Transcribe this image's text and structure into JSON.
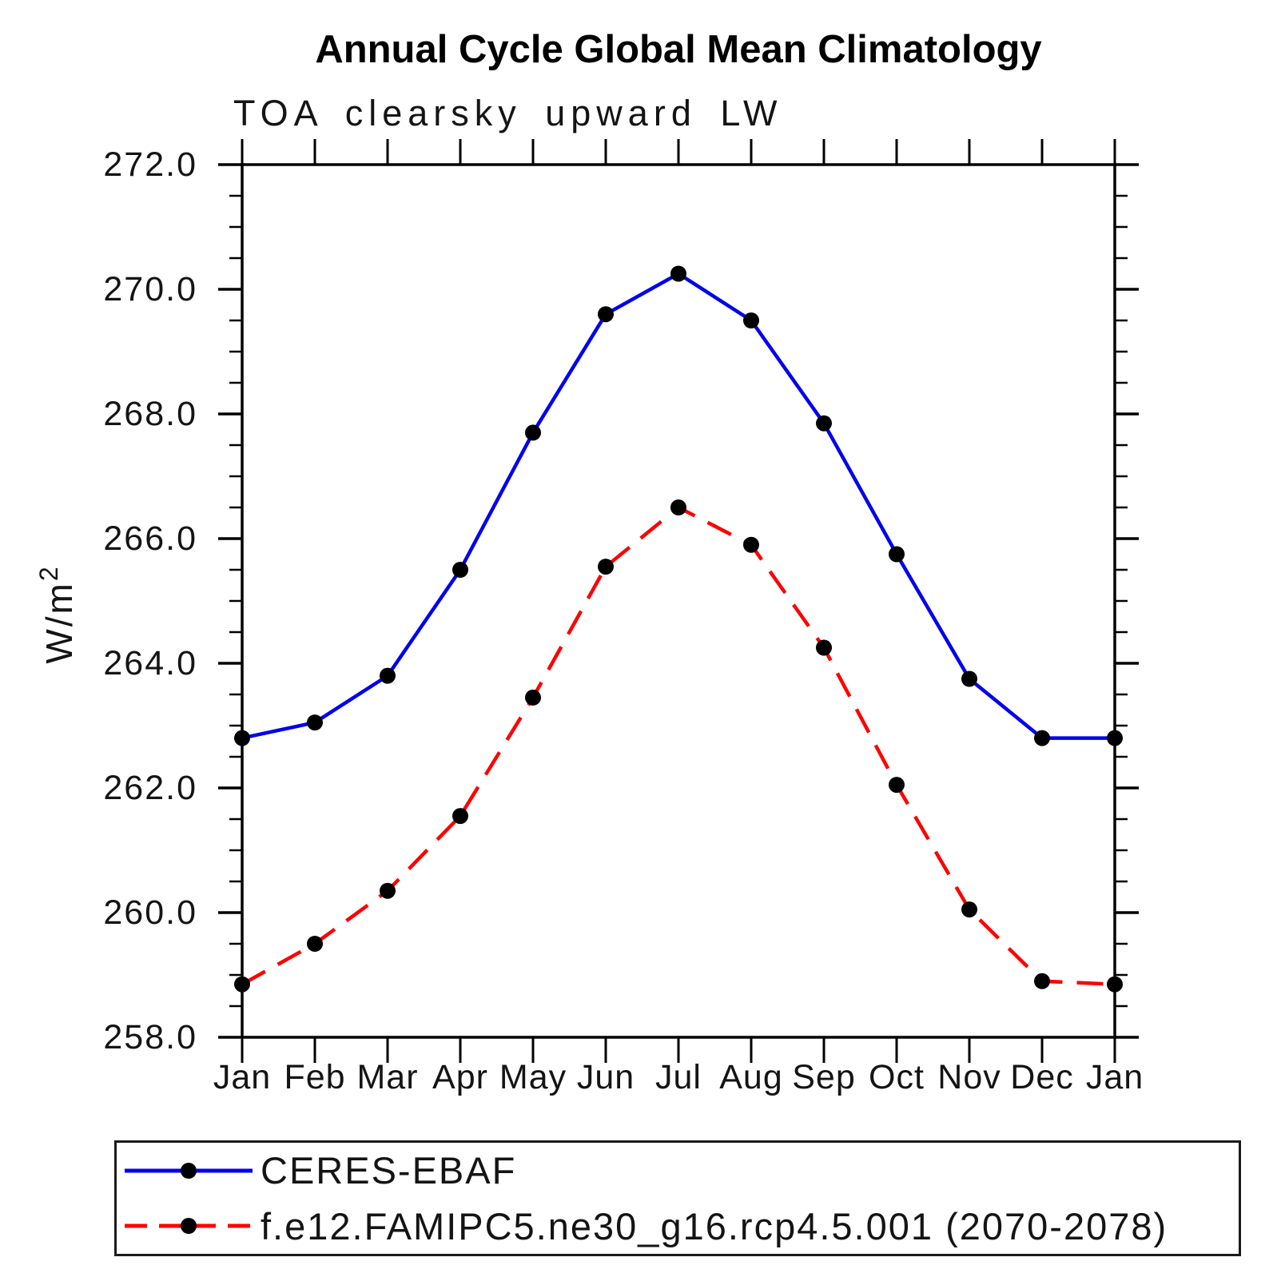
{
  "chart_data": {
    "type": "line",
    "title": "Annual Cycle Global Mean Climatology",
    "subtitle": "TOA clearsky upward LW",
    "ylabel": "W/m",
    "ylabel_sup": "2",
    "categories": [
      "Jan",
      "Feb",
      "Mar",
      "Apr",
      "May",
      "Jun",
      "Jul",
      "Aug",
      "Sep",
      "Oct",
      "Nov",
      "Dec",
      "Jan"
    ],
    "ylim": [
      258.0,
      272.0
    ],
    "ytick_labels": [
      "272.0",
      "270.0",
      "268.0",
      "266.0",
      "264.0",
      "262.0",
      "260.0",
      "258.0"
    ],
    "ytick_step": 2.0,
    "yminor_step": 0.5,
    "grid": false,
    "legend_position": "bottom",
    "marker_color": "#000000",
    "axis_color": "#000000",
    "series": [
      {
        "name": "CERES-EBAF",
        "color": "#0000ee",
        "style": "solid",
        "values": [
          262.8,
          263.05,
          263.8,
          265.5,
          267.7,
          269.6,
          270.25,
          269.5,
          267.85,
          265.75,
          263.75,
          262.8,
          262.8
        ]
      },
      {
        "name": "f.e12.FAMIPC5.ne30_g16.rcp4.5.001 (2070-2078)",
        "color": "#ff0000",
        "style": "dashed",
        "values": [
          258.85,
          259.5,
          260.35,
          261.55,
          263.45,
          265.55,
          266.5,
          265.9,
          264.25,
          262.05,
          260.05,
          258.9,
          258.85
        ]
      }
    ]
  }
}
